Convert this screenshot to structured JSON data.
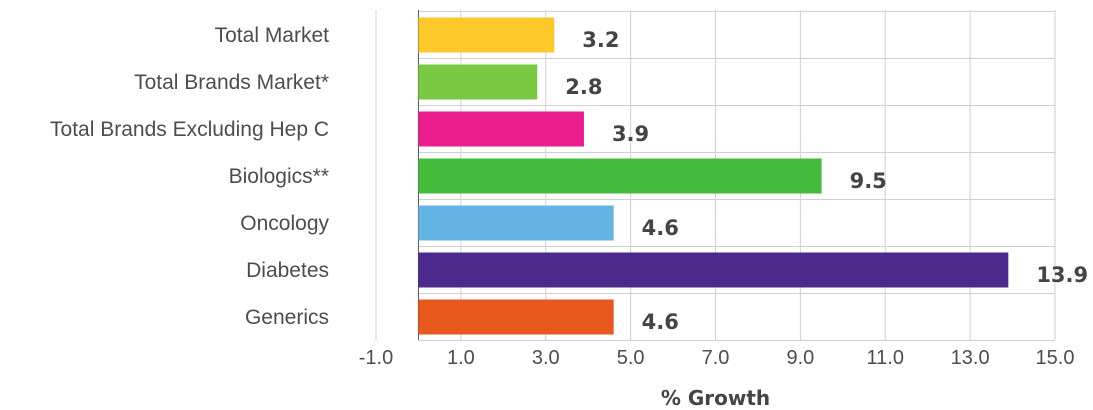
{
  "chart_data": {
    "type": "bar",
    "orientation": "horizontal",
    "categories": [
      "Total Market",
      "Total Brands Market*",
      "Total Brands Excluding Hep C",
      "Biologics**",
      "Oncology",
      "Diabetes",
      "Generics"
    ],
    "values": [
      3.2,
      2.8,
      3.9,
      9.5,
      4.6,
      13.9,
      4.6
    ],
    "value_labels": [
      "3.2",
      "2.8",
      "3.9",
      "9.5",
      "4.6",
      "13.9",
      "4.6"
    ],
    "colors": [
      "#fcc82a",
      "#7ac943",
      "#e91e8c",
      "#44bb3a",
      "#64b5e6",
      "#4c2a8c",
      "#e8571c"
    ],
    "xlabel": "% Growth",
    "xlim": [
      -1.0,
      15.0
    ],
    "xticks": [
      -1.0,
      1.0,
      3.0,
      5.0,
      7.0,
      9.0,
      11.0,
      13.0,
      15.0
    ],
    "xtick_labels": [
      "-1.0",
      "1.0",
      "3.0",
      "5.0",
      "7.0",
      "9.0",
      "11.0",
      "13.0",
      "15.0"
    ],
    "grid": true,
    "legend": "none"
  }
}
